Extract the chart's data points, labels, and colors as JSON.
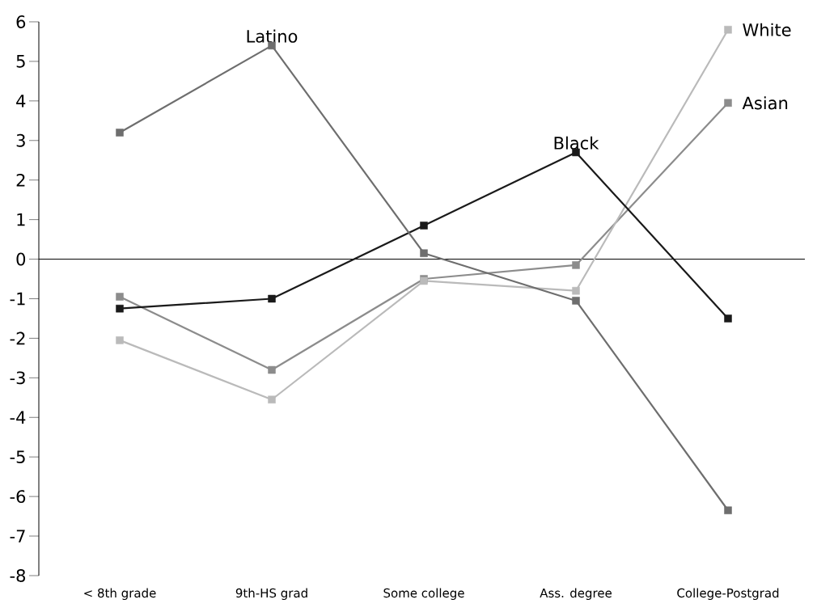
{
  "chart_data": {
    "type": "line",
    "categories": [
      "< 8th grade",
      "9th-HS grad",
      "Some college",
      "Ass. degree",
      "College-Postgrad"
    ],
    "series": [
      {
        "name": "Latino",
        "color": "#6e6e6e",
        "values": [
          3.2,
          5.4,
          0.15,
          -1.05,
          -6.35
        ]
      },
      {
        "name": "Black",
        "color": "#1a1a1a",
        "values": [
          -1.25,
          -1.0,
          0.85,
          2.7,
          -1.5
        ]
      },
      {
        "name": "White",
        "color": "#bababa",
        "values": [
          -2.05,
          -3.55,
          -0.55,
          -0.8,
          5.8
        ]
      },
      {
        "name": "Asian",
        "color": "#8c8c8c",
        "values": [
          -0.95,
          -2.8,
          -0.5,
          -0.15,
          3.95
        ]
      }
    ],
    "ylim": [
      -8,
      6
    ],
    "yticks": [
      -8,
      -7,
      -6,
      -5,
      -4,
      -3,
      -2,
      -1,
      0,
      1,
      2,
      3,
      4,
      5,
      6
    ],
    "legend": false,
    "marker": "square",
    "line_style": "solid"
  }
}
